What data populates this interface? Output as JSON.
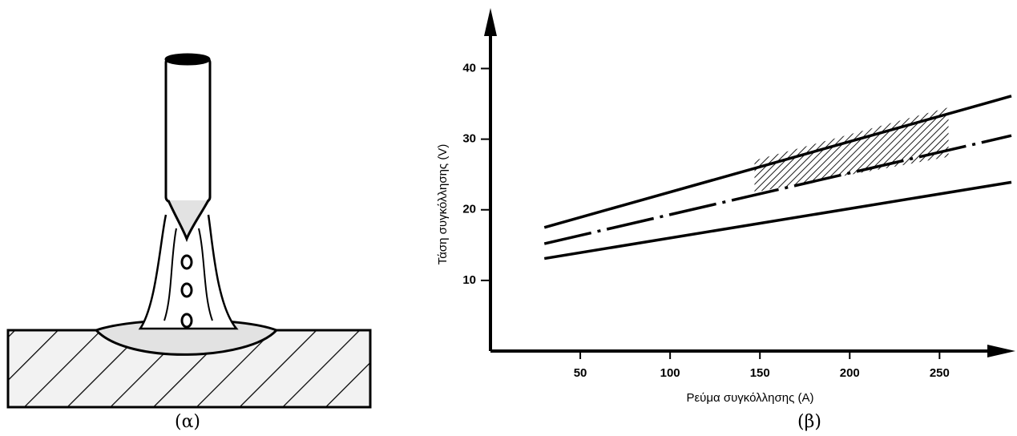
{
  "captions": [
    "(α)",
    "(β)"
  ],
  "chart_data": {
    "type": "line",
    "x_label": "Ρεύμα συγκόλλησης (A)",
    "y_label": "Τάση συγκόλλησης (V)",
    "x": [
      30,
      290
    ],
    "series": [
      {
        "color": "#000000",
        "style": "solid",
        "values": [
          17.5,
          36.1
        ]
      },
      {
        "color": "#000000",
        "style": "dashdot",
        "values": [
          15.2,
          30.5
        ]
      },
      {
        "color": "#000000",
        "style": "solid",
        "values": [
          13.1,
          23.9
        ]
      }
    ],
    "region": {
      "x": [
        147,
        255,
        255,
        147
      ],
      "y": [
        27,
        34.5,
        27.5,
        22.5
      ],
      "color": "#000000"
    },
    "xlim": [
      0,
      290
    ],
    "ylim": [
      0,
      48
    ],
    "xticks": [
      50,
      100,
      150,
      200,
      250
    ],
    "yticks": [
      10,
      20,
      30,
      40
    ]
  }
}
